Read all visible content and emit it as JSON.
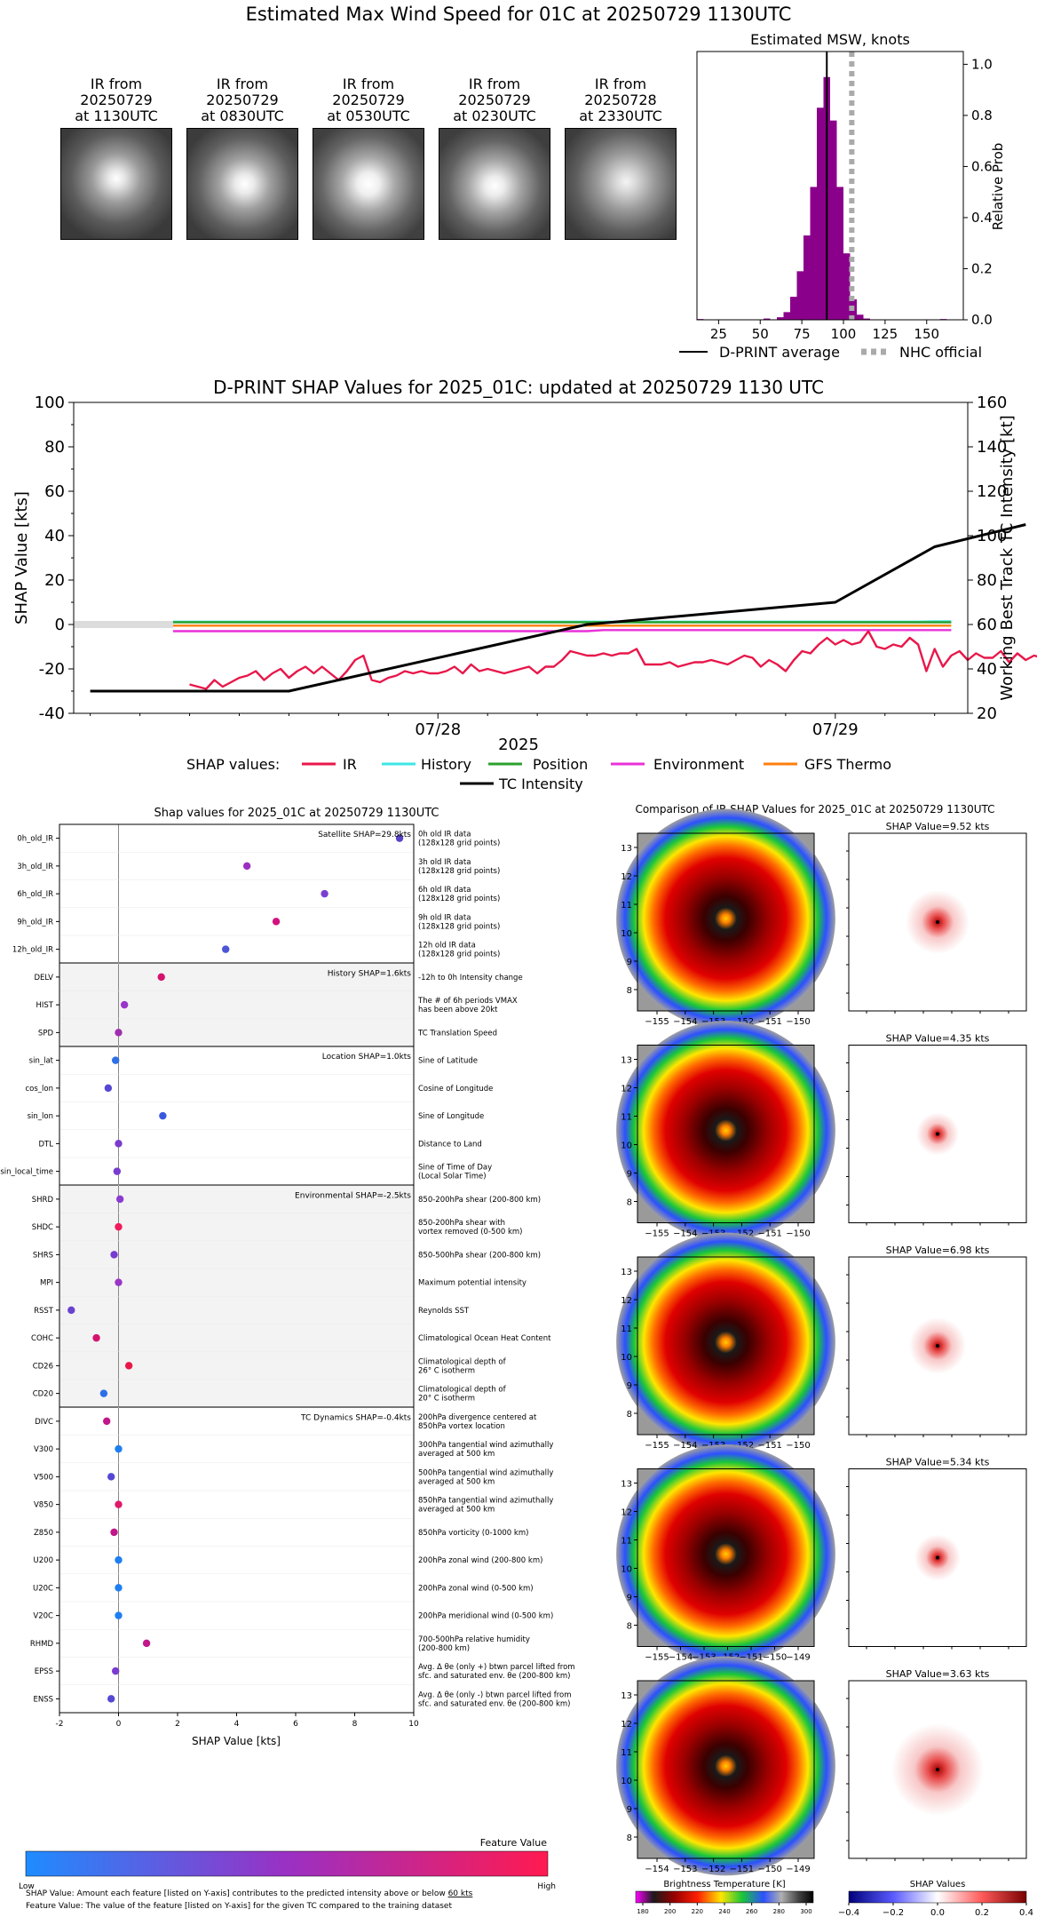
{
  "page_title": "Estimated Max Wind Speed for 01C at 20250729 1130UTC",
  "ir_thumbnails": [
    {
      "label": "IR from\n20250729\nat 1130UTC"
    },
    {
      "label": "IR from\n20250729\nat 0830UTC"
    },
    {
      "label": "IR from\n20250729\nat 0530UTC"
    },
    {
      "label": "IR from\n20250729\nat 0230UTC"
    },
    {
      "label": "IR from\n20250728\nat 2330UTC"
    }
  ],
  "legend_top": {
    "dprint": "D-PRINT average",
    "nhc": "NHC official"
  },
  "legend_shap": {
    "prefix": "SHAP values:",
    "ir": "IR",
    "history": "History",
    "position": "Position",
    "environment": "Environment",
    "gfs": "GFS Thermo",
    "tc": "TC Intensity"
  },
  "shap_caption": {
    "line1_a": "SHAP Value: Amount each feature [listed on Y-axis] contributes to the predicted intensity above or below ",
    "line1_b": "60 kts",
    "line2": "Feature Value: The value of the feature [listed on Y-axis] for the given TC compared to the training dataset"
  },
  "colors": {
    "ir": "#e8174a",
    "history": "#3ee6e6",
    "position": "#2ca02c",
    "environment": "#e831d8",
    "gfs": "#ff7f0e",
    "tc": "#000000",
    "hist": "#8b008b"
  },
  "chart_data": [
    {
      "type": "bar",
      "title": "Estimated MSW, knots",
      "xticks": [
        25,
        50,
        75,
        100,
        125,
        150
      ],
      "ylabel": "Relative Prob",
      "yticks": [
        "0.0",
        "0.2",
        "0.4",
        "0.6",
        "0.8",
        "1.0"
      ],
      "xlim": [
        12,
        172
      ],
      "ylim": [
        0,
        1.05
      ],
      "bin_width": 4,
      "bins": [
        {
          "x": 14,
          "y": 0.0
        },
        {
          "x": 54,
          "y": 0.005
        },
        {
          "x": 62,
          "y": 0.01
        },
        {
          "x": 66,
          "y": 0.03
        },
        {
          "x": 70,
          "y": 0.09
        },
        {
          "x": 74,
          "y": 0.19
        },
        {
          "x": 78,
          "y": 0.33
        },
        {
          "x": 82,
          "y": 0.52
        },
        {
          "x": 86,
          "y": 0.83
        },
        {
          "x": 90,
          "y": 0.95
        },
        {
          "x": 94,
          "y": 0.78
        },
        {
          "x": 98,
          "y": 0.52
        },
        {
          "x": 102,
          "y": 0.26
        },
        {
          "x": 106,
          "y": 0.08
        },
        {
          "x": 110,
          "y": 0.02
        },
        {
          "x": 114,
          "y": 0.005
        },
        {
          "x": 160,
          "y": 0.0
        }
      ],
      "dprint_average": 90,
      "nhc_official": 105
    },
    {
      "type": "line",
      "title": "D-PRINT SHAP Values for 2025_01C: updated at 20250729 1130 UTC",
      "xlabel": "2025",
      "xtick_labels": [
        "07/28",
        "07/29"
      ],
      "ylabel": "SHAP Value [kts]",
      "y2label": "Working Best Track TC Intensity [kt]",
      "ylim": [
        -40,
        100
      ],
      "yticks": [
        -40,
        -20,
        0,
        20,
        40,
        60,
        80,
        100
      ],
      "y2lim": [
        20,
        160
      ],
      "y2ticks": [
        20,
        40,
        60,
        80,
        100,
        120,
        140,
        160
      ],
      "xlim_hours": [
        -46,
        8
      ],
      "xtick_hours": [
        -24,
        0
      ],
      "series": [
        {
          "name": "IR",
          "x_start": -39,
          "step": 0.5,
          "values": [
            -27,
            -28,
            -29,
            -25,
            -28,
            -26,
            -24,
            -23,
            -21,
            -25,
            -22,
            -20,
            -24,
            -21,
            -19,
            -22,
            -19,
            -22,
            -25,
            -21,
            -16,
            -14,
            -25,
            -26,
            -24,
            -23,
            -21,
            -22,
            -21,
            -22,
            -22,
            -21,
            -19,
            -22,
            -18,
            -21,
            -20,
            -21,
            -22,
            -21,
            -20,
            -19,
            -22,
            -19,
            -19,
            -16,
            -12,
            -13,
            -14,
            -14,
            -13,
            -14,
            -13,
            -13,
            -11,
            -18,
            -18,
            -18,
            -17,
            -19,
            -18,
            -17,
            -17,
            -16,
            -17,
            -18,
            -16,
            -14,
            -15,
            -19,
            -16,
            -18,
            -21,
            -16,
            -12,
            -13,
            -9,
            -6,
            -9,
            -7,
            -9,
            -8,
            -3,
            -10,
            -11,
            -9,
            -10,
            -6,
            -9,
            -21,
            -11,
            -19,
            -14,
            -12,
            -16,
            -13,
            -15,
            -15,
            -12,
            -17,
            -13,
            -16,
            -14,
            -15,
            -14,
            -15,
            -15,
            -14,
            -19,
            -19,
            -16,
            -11,
            -10,
            -9,
            -3,
            4,
            -2,
            1,
            -2,
            2,
            11,
            14,
            17,
            12,
            14,
            18,
            21,
            25,
            22,
            19,
            13,
            22,
            26,
            20,
            17,
            25,
            28,
            23,
            27,
            30,
            29,
            23,
            28,
            32,
            31,
            29,
            30
          ]
        },
        {
          "name": "History",
          "x_start": -40,
          "step": 1,
          "values": [
            1.3,
            1.3,
            1.3,
            1.3,
            1.3,
            1.3,
            1.3,
            1.3,
            1.3,
            1.3,
            1.3,
            1.3,
            1.3,
            1.3,
            1.3,
            1.3,
            1.3,
            1.3,
            1.3,
            1.3,
            1.3,
            1.3,
            1.3,
            1.3,
            1.3,
            1.3,
            1.3,
            1.3,
            1.3,
            1.3,
            1.3,
            1.3,
            1.3,
            1.3,
            1.3,
            1.3,
            1.3,
            1.3,
            1.3,
            1.3,
            1.3,
            1.3,
            1.3,
            1.3,
            1.3,
            1.3,
            1.4,
            1.4
          ]
        },
        {
          "name": "Position",
          "x_start": -40,
          "step": 1,
          "values": [
            1.0,
            1.0,
            1.0,
            1.0,
            1.0,
            1.0,
            1.0,
            1.0,
            1.0,
            1.0,
            1.0,
            1.0,
            1.0,
            1.0,
            1.0,
            1.0,
            1.0,
            1.0,
            1.0,
            1.0,
            1.0,
            1.0,
            1.0,
            1.0,
            1.0,
            1.0,
            1.0,
            1.0,
            1.0,
            1.0,
            1.0,
            1.0,
            1.0,
            1.0,
            1.0,
            1.0,
            1.0,
            1.0,
            1.0,
            1.0,
            1.0,
            1.0,
            1.0,
            1.0,
            1.0,
            1.0,
            1.0,
            1.0
          ]
        },
        {
          "name": "Environment",
          "x_start": -40,
          "step": 1,
          "values": [
            -3,
            -3,
            -3,
            -3,
            -3,
            -3,
            -3,
            -3,
            -3,
            -3,
            -3,
            -3,
            -3,
            -3,
            -3,
            -3,
            -3,
            -3,
            -3,
            -3,
            -3,
            -3,
            -3,
            -3,
            -3,
            -3,
            -2.5,
            -2.5,
            -2.5,
            -2.5,
            -2.5,
            -2.5,
            -2.5,
            -2.5,
            -2.5,
            -2.5,
            -2.5,
            -2.5,
            -2.5,
            -2.5,
            -2.5,
            -2.5,
            -2.5,
            -2.5,
            -2.5,
            -2.5,
            -2.5,
            -2.5
          ]
        },
        {
          "name": "GFS Thermo",
          "x_start": -40,
          "step": 1,
          "values": [
            -0.5,
            -0.5,
            -0.5,
            -0.5,
            -0.5,
            -0.5,
            -0.5,
            -0.5,
            -0.5,
            -0.5,
            -0.5,
            -0.5,
            -0.5,
            -0.5,
            -0.5,
            -0.5,
            -0.5,
            -0.5,
            -0.5,
            -0.5,
            -0.5,
            -0.5,
            -0.5,
            -0.5,
            -0.5,
            -0.5,
            -0.5,
            -0.5,
            -0.5,
            -0.5,
            -0.5,
            -0.5,
            -0.5,
            -0.5,
            -0.5,
            -0.5,
            -0.5,
            -0.5,
            -0.5,
            -0.5,
            -0.5,
            -0.5,
            -0.5,
            -0.5,
            -0.5,
            -0.5,
            -0.5,
            -0.5
          ]
        },
        {
          "name": "TC Intensity",
          "axis": "y2",
          "points": [
            [
              -45,
              30
            ],
            [
              -33,
              30
            ],
            [
              -15,
              60
            ],
            [
              0,
              70
            ],
            [
              6,
              95
            ],
            [
              11.5,
              105
            ]
          ]
        }
      ],
      "shade_band": {
        "x_from": -46,
        "x_to": -40,
        "y": 0
      }
    },
    {
      "type": "scatter",
      "title": "Shap values for 2025_01C at 20250729 1130UTC",
      "xlabel": "SHAP Value [kts]",
      "xlim": [
        -2,
        10
      ],
      "xticks": [
        -2,
        0,
        2,
        4,
        6,
        8,
        10
      ],
      "groups": [
        {
          "label": "Satellite SHAP=29.8kts",
          "shaded": false,
          "count": 5
        },
        {
          "label": "History SHAP=1.6kts",
          "shaded": true,
          "count": 3
        },
        {
          "label": "Location SHAP=1.0kts",
          "shaded": false,
          "count": 5
        },
        {
          "label": "Environmental SHAP=-2.5kts",
          "shaded": true,
          "count": 8
        },
        {
          "label": "TC Dynamics SHAP=-0.4kts",
          "shaded": false,
          "count": 11
        }
      ],
      "features": [
        {
          "name": "0h_old_IR",
          "value": 9.52,
          "desc": "0h old IR data\n(128x128 grid points)",
          "color": "#5a42c8"
        },
        {
          "name": "3h_old_IR",
          "value": 4.35,
          "desc": "3h old IR data\n(128x128 grid points)",
          "color": "#9b2fc2"
        },
        {
          "name": "6h_old_IR",
          "value": 6.98,
          "desc": "6h old IR data\n(128x128 grid points)",
          "color": "#7a3fd0"
        },
        {
          "name": "9h_old_IR",
          "value": 5.34,
          "desc": "9h old IR data\n(128x128 grid points)",
          "color": "#d1127e"
        },
        {
          "name": "12h_old_IR",
          "value": 3.63,
          "desc": "12h old IR data\n(128x128 grid points)",
          "color": "#4b55d6"
        },
        {
          "name": "DELV",
          "value": 1.45,
          "desc": "-12h to 0h Intensity change",
          "color": "#d4136f"
        },
        {
          "name": "HIST",
          "value": 0.2,
          "desc": "The # of 6h periods VMAX\nhas been above 20kt",
          "color": "#9a35c8"
        },
        {
          "name": "SPD",
          "value": 0.0,
          "desc": "TC Translation Speed",
          "color": "#a02fb0"
        },
        {
          "name": "sin_lat",
          "value": -0.1,
          "desc": "Sine of Latitude",
          "color": "#2c6fe8"
        },
        {
          "name": "cos_lon",
          "value": -0.35,
          "desc": "Cosine of Longitude",
          "color": "#5548d4"
        },
        {
          "name": "sin_lon",
          "value": 1.5,
          "desc": "Sine of Longitude",
          "color": "#3a58de"
        },
        {
          "name": "DTL",
          "value": 0.0,
          "desc": "Distance to Land",
          "color": "#7a3bd0"
        },
        {
          "name": "sin_local_time",
          "value": -0.05,
          "desc": "Sine of Time of Day\n(Local Solar Time)",
          "color": "#7a3bd0"
        },
        {
          "name": "SHRD",
          "value": 0.05,
          "desc": "850-200hPa shear (200-800 km)",
          "color": "#8b3bd0"
        },
        {
          "name": "SHDC",
          "value": 0.0,
          "desc": "850-200hPa shear with\nvortex removed (0-500 km)",
          "color": "#f01a5c"
        },
        {
          "name": "SHRS",
          "value": -0.15,
          "desc": "850-500hPa shear (200-800 km)",
          "color": "#7a3bd0"
        },
        {
          "name": "MPI",
          "value": 0.0,
          "desc": "Maximum potential intensity",
          "color": "#9a35c8"
        },
        {
          "name": "RSST",
          "value": -1.6,
          "desc": "Reynolds SST",
          "color": "#6a42d0"
        },
        {
          "name": "COHC",
          "value": -0.75,
          "desc": "Climatological Ocean Heat Content",
          "color": "#d4136f"
        },
        {
          "name": "CD26",
          "value": 0.35,
          "desc": "Climatological depth of\n26° C isotherm",
          "color": "#e8174a"
        },
        {
          "name": "CD20",
          "value": -0.5,
          "desc": "Climatological depth of\n20° C isotherm",
          "color": "#2c6fe8"
        },
        {
          "name": "DIVC",
          "value": -0.4,
          "desc": "200hPa divergence centered at\n850hPa vortex location",
          "color": "#c0178a"
        },
        {
          "name": "V300",
          "value": 0.0,
          "desc": "300hPa tangential wind azimuthally\naveraged at 500 km",
          "color": "#1e7ff0"
        },
        {
          "name": "V500",
          "value": -0.25,
          "desc": "500hPa tangential wind azimuthally\naveraged at 500 km",
          "color": "#5548d4"
        },
        {
          "name": "V850",
          "value": 0.0,
          "desc": "850hPa tangential wind azimuthally\naveraged at 500 km",
          "color": "#e01a6a"
        },
        {
          "name": "Z850",
          "value": -0.15,
          "desc": "850hPa vorticity (0-1000 km)",
          "color": "#c0178a"
        },
        {
          "name": "U200",
          "value": 0.0,
          "desc": "200hPa zonal wind (200-800 km)",
          "color": "#1e7ff0"
        },
        {
          "name": "U20C",
          "value": 0.0,
          "desc": "200hPa zonal wind (0-500 km)",
          "color": "#1e7ff0"
        },
        {
          "name": "V20C",
          "value": 0.0,
          "desc": "200hPa meridional wind (0-500 km)",
          "color": "#1e7ff0"
        },
        {
          "name": "RHMD",
          "value": 0.95,
          "desc": "700-500hPa relative humidity\n(200-800 km)",
          "color": "#c0178a"
        },
        {
          "name": "EPSS",
          "value": -0.1,
          "desc": "Avg. Δ θe (only +) btwn parcel lifted from\nsfc. and saturated env. θe (200-800 km)",
          "color": "#7a3bd0"
        },
        {
          "name": "ENSS",
          "value": -0.25,
          "desc": "Avg. Δ θe (only -) btwn parcel lifted from\nsfc. and saturated env. θe (200-800 km)",
          "color": "#5548d4"
        }
      ],
      "colorbar": {
        "title": "Feature Value",
        "low": "Low",
        "high": "High",
        "from": "#1e8cff",
        "to": "#ff1a50"
      }
    },
    {
      "type": "heatmap",
      "title": "Comparison of IR SHAP Values for 2025_01C at 20250729 1130UTC",
      "rows": [
        {
          "ir_title": "0h old IR Data",
          "shap_title": "SHAP Value=9.52 kts",
          "yticks": [
            8,
            9,
            10,
            11,
            12,
            13
          ],
          "xticks": [
            -155,
            -154,
            -153,
            -152,
            -151,
            -150
          ]
        },
        {
          "ir_title": "3h old IR Data",
          "shap_title": "SHAP Value=4.35 kts",
          "yticks": [
            8,
            9,
            10,
            11,
            12,
            13
          ],
          "xticks": [
            -155,
            -154,
            -153,
            -152,
            -151,
            -150
          ]
        },
        {
          "ir_title": "6h old IR Data",
          "shap_title": "SHAP Value=6.98 kts",
          "yticks": [
            8,
            9,
            10,
            11,
            12,
            13
          ],
          "xticks": [
            -155,
            -154,
            -153,
            -152,
            -151,
            -150
          ]
        },
        {
          "ir_title": "9h old IR Data",
          "shap_title": "SHAP Value=5.34 kts",
          "yticks": [
            8,
            9,
            10,
            11,
            12,
            13
          ],
          "xticks": [
            -155,
            -154,
            -153,
            -152,
            -151,
            -150,
            -149
          ]
        },
        {
          "ir_title": "12h old IR Data",
          "shap_title": "SHAP Value=3.63 kts",
          "yticks": [
            8,
            9,
            10,
            11,
            12,
            13
          ],
          "xticks": [
            -154,
            -153,
            -152,
            -151,
            -150,
            -149
          ]
        }
      ],
      "bt_colorbar": {
        "title": "Brightness Temperature [K]",
        "ticks": [
          180,
          200,
          220,
          240,
          260,
          280,
          300
        ]
      },
      "shap_colorbar": {
        "title": "SHAP Values",
        "ticks": [
          "−0.4",
          "−0.2",
          "0.0",
          "0.2",
          "0.4"
        ]
      }
    }
  ]
}
